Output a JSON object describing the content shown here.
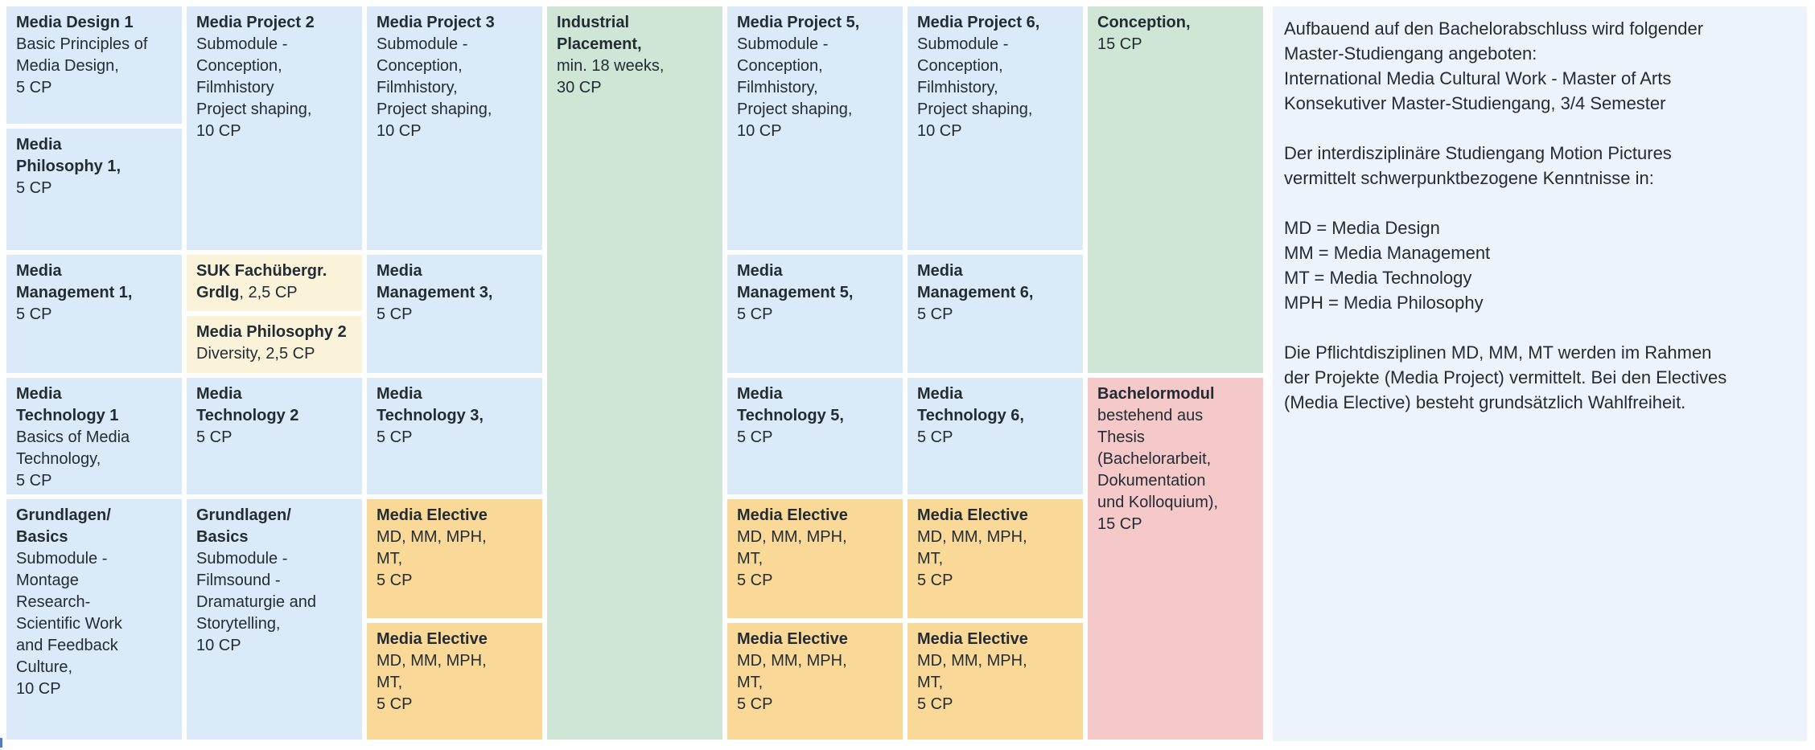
{
  "colors": {
    "module_blue": "#dbeaf8",
    "placement_green": "#cfe5d6",
    "suk_cream": "#faf3da",
    "elective_orange": "#fad998",
    "thesis_pink": "#f5c9ca",
    "panel_blue": "#edf3fb",
    "text_color": "#232c33",
    "edge_mark_blue": "#4d7ec2"
  },
  "table": {
    "cells": {
      "md1": {
        "bold": "Media Design 1",
        "rest": "\nBasic Principles of\nMedia Design,\n5 CP"
      },
      "mph1": {
        "bold": "Media\nPhilosophy 1,",
        "rest": "\n5 CP"
      },
      "mm1": {
        "bold": "Media\nManagement 1,",
        "rest": "\n5 CP"
      },
      "mt1": {
        "bold": "Media\nTechnology 1",
        "rest": "\nBasics of Media\nTechnology,\n5 CP"
      },
      "gb1": {
        "bold": "Grundlagen/\nBasics",
        "rest": "\nSubmodule -\nMontage\nResearch-\nScientific Work\nand Feedback\nCulture,\n10 CP"
      },
      "mp2": {
        "bold": "Media Project 2",
        "rest": "\nSubmodule -\nConception,\nFilmhistory\nProject shaping,\n10 CP"
      },
      "suk": {
        "bold": "SUK Fachübergr.\nGrdlg",
        "rest": ", 2,5 CP"
      },
      "mph2": {
        "bold": "Media Philosophy 2",
        "rest": "\nDiversity, 2,5 CP"
      },
      "mt2": {
        "bold": "Media\nTechnology 2",
        "rest": "\n5 CP"
      },
      "gb2": {
        "bold": "Grundlagen/\nBasics",
        "rest": "\nSubmodule -\nFilmsound -\nDramaturgie and\nStorytelling,\n10 CP"
      },
      "mp3": {
        "bold": "Media Project 3",
        "rest": "\nSubmodule -\nConception,\nFilmhistory,\nProject shaping,\n10 CP"
      },
      "mm3": {
        "bold": "Media\nManagement 3,",
        "rest": "\n5 CP"
      },
      "mt3": {
        "bold": "Media\nTechnology 3,",
        "rest": "\n5 CP"
      },
      "ip": {
        "bold": "Industrial\nPlacement,",
        "rest": "\nmin. 18 weeks,\n30 CP"
      },
      "mp5": {
        "bold": "Media Project 5,",
        "rest": "\nSubmodule -\nConception,\nFilmhistory,\nProject shaping,\n10 CP"
      },
      "mm5": {
        "bold": "Media\nManagement 5,",
        "rest": "\n5 CP"
      },
      "mt5": {
        "bold": "Media\nTechnology 5,",
        "rest": "\n5 CP"
      },
      "mp6": {
        "bold": "Media Project 6,",
        "rest": "\nSubmodule -\nConception,\nFilmhistory,\nProject shaping,\n10 CP"
      },
      "mm6": {
        "bold": "Media\nManagement 6,",
        "rest": "\n5 CP"
      },
      "mt6": {
        "bold": "Media\nTechnology 6,",
        "rest": "\n5 CP"
      },
      "me": {
        "bold": "Media Elective",
        "rest": "\nMD, MM, MPH,\nMT,\n5 CP"
      },
      "conc": {
        "bold": "Conception,",
        "rest": "\n15 CP"
      },
      "bach": {
        "bold": "Bachelormodul",
        "rest": "\nbestehend aus\nThesis\n(Bachelorarbeit,\nDokumentation\nund Kolloquium),\n15 CP"
      }
    }
  },
  "info_panel": {
    "text": "Aufbauend auf den Bachelorabschluss wird folgender\nMaster-Studiengang angeboten:\nInternational Media Cultural Work - Master of Arts\nKonsekutiver Master-Studiengang, 3/4 Semester\n\nDer interdisziplinäre Studiengang Motion Pictures\nvermittelt schwerpunktbezogene Kenntnisse in:\n\nMD = Media Design\nMM = Media Management\nMT = Media Technology\nMPH = Media Philosophy\n\nDie Pflichtdisziplinen MD, MM, MT werden im Rahmen\nder Projekte (Media Project) vermittelt. Bei den Electives\n(Media Elective) besteht grundsätzlich Wahlfreiheit."
  }
}
